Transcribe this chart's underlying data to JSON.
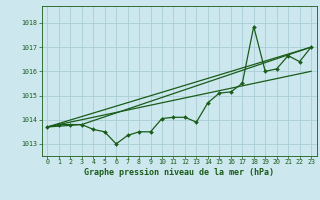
{
  "title": "Graphe pression niveau de la mer (hPa)",
  "bg_color": "#cce8ee",
  "grid_color": "#aacdd6",
  "line_color": "#1a5c1a",
  "xlim": [
    -0.5,
    23.5
  ],
  "ylim": [
    1012.5,
    1018.7
  ],
  "yticks": [
    1013,
    1014,
    1015,
    1016,
    1017,
    1018
  ],
  "xticks": [
    0,
    1,
    2,
    3,
    4,
    5,
    6,
    7,
    8,
    9,
    10,
    11,
    12,
    13,
    14,
    15,
    16,
    17,
    18,
    19,
    20,
    21,
    22,
    23
  ],
  "main_series": {
    "x": [
      0,
      1,
      2,
      3,
      4,
      5,
      6,
      7,
      8,
      9,
      10,
      11,
      12,
      13,
      14,
      15,
      16,
      17,
      18,
      19,
      20,
      21,
      22,
      23
    ],
    "y": [
      1013.7,
      1013.8,
      1013.8,
      1013.8,
      1013.6,
      1013.5,
      1013.0,
      1013.35,
      1013.5,
      1013.5,
      1014.05,
      1014.1,
      1014.1,
      1013.9,
      1014.7,
      1015.1,
      1015.15,
      1015.5,
      1017.85,
      1016.0,
      1016.1,
      1016.65,
      1016.4,
      1017.0
    ]
  },
  "straight_lines": [
    {
      "x": [
        0,
        23
      ],
      "y": [
        1013.7,
        1017.0
      ]
    },
    {
      "x": [
        0,
        23
      ],
      "y": [
        1013.7,
        1016.0
      ]
    },
    {
      "x": [
        0,
        3,
        23
      ],
      "y": [
        1013.7,
        1013.8,
        1017.0
      ]
    }
  ]
}
